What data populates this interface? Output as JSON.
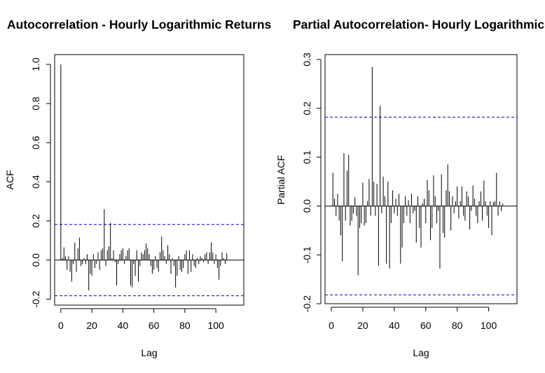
{
  "chart_data": [
    {
      "type": "bar",
      "title": "Autocorrelation - Hourly Logarithmic Returns",
      "xlabel": "Lag",
      "ylabel": "ACF",
      "xlim": [
        -4,
        118
      ],
      "ylim": [
        -0.23,
        1.05
      ],
      "x_ticks": [
        0,
        20,
        40,
        60,
        80,
        100
      ],
      "y_ticks": [
        -0.2,
        0.0,
        0.2,
        0.4,
        0.6,
        0.8,
        1.0
      ],
      "y_tick_labels": [
        "-0.2",
        "0.0",
        "0.2",
        "0.4",
        "0.6",
        "0.8",
        "1.0"
      ],
      "confidence_bound": 0.182,
      "zero_line": true,
      "line_color": "#000000",
      "bound_color": "#0000cc",
      "lags": [
        0,
        1,
        2,
        3,
        4,
        5,
        6,
        7,
        8,
        9,
        10,
        11,
        12,
        13,
        14,
        15,
        16,
        17,
        18,
        19,
        20,
        21,
        22,
        23,
        24,
        25,
        26,
        27,
        28,
        29,
        30,
        31,
        32,
        33,
        34,
        35,
        36,
        37,
        38,
        39,
        40,
        41,
        42,
        43,
        44,
        45,
        46,
        47,
        48,
        49,
        50,
        51,
        52,
        53,
        54,
        55,
        56,
        57,
        58,
        59,
        60,
        61,
        62,
        63,
        64,
        65,
        66,
        67,
        68,
        69,
        70,
        71,
        72,
        73,
        74,
        75,
        76,
        77,
        78,
        79,
        80,
        81,
        82,
        83,
        84,
        85,
        86,
        87,
        88,
        89,
        90,
        91,
        92,
        93,
        94,
        95,
        96,
        97,
        98,
        99,
        100,
        101,
        102,
        103,
        104,
        105,
        106,
        107,
        108
      ],
      "values": [
        1.0,
        0.01,
        0.065,
        0.02,
        -0.05,
        0.02,
        -0.06,
        -0.11,
        -0.02,
        0.09,
        -0.06,
        0.06,
        0.115,
        -0.03,
        -0.02,
        0.01,
        -0.02,
        0.03,
        -0.155,
        -0.07,
        -0.08,
        0.03,
        -0.04,
        -0.02,
        0.04,
        -0.05,
        0.05,
        0.06,
        0.26,
        -0.03,
        0.05,
        0.07,
        0.19,
        0.01,
        0.05,
        -0.01,
        -0.13,
        -0.02,
        0.03,
        0.05,
        0.06,
        -0.02,
        0.02,
        0.05,
        0.06,
        -0.13,
        -0.14,
        -0.02,
        -0.08,
        0.05,
        -0.11,
        -0.03,
        0.04,
        0.03,
        0.05,
        0.085,
        0.06,
        0.03,
        -0.03,
        -0.07,
        -0.05,
        0.02,
        -0.04,
        -0.06,
        0.04,
        0.12,
        0.05,
        0.02,
        -0.02,
        0.075,
        0.03,
        -0.07,
        0.01,
        -0.03,
        -0.14,
        -0.08,
        0.02,
        -0.05,
        -0.06,
        -0.04,
        0.03,
        0.05,
        -0.07,
        0.05,
        -0.06,
        0.03,
        -0.03,
        -0.04,
        0.01,
        -0.02,
        0.02,
        0.01,
        -0.01,
        0.03,
        0.04,
        -0.02,
        0.04,
        0.09,
        0.04,
        -0.02,
        0.03,
        -0.04,
        -0.1,
        -0.03,
        0.04,
        0.01,
        -0.02,
        0.035,
        0.0
      ]
    },
    {
      "type": "bar",
      "title": "Partial Autocorrelation- Hourly Logarithmic Returns",
      "xlabel": "Lag",
      "ylabel": "Partial ACF",
      "xlim": [
        -4,
        118
      ],
      "ylim": [
        -0.2,
        0.31
      ],
      "x_ticks": [
        0,
        20,
        40,
        60,
        80,
        100
      ],
      "y_ticks": [
        -0.2,
        -0.1,
        0.0,
        0.1,
        0.2,
        0.3
      ],
      "y_tick_labels": [
        "-0.2",
        "-0.1",
        "0.0",
        "0.1",
        "0.2",
        "0.3"
      ],
      "confidence_bound": 0.182,
      "zero_line": true,
      "line_color": "#000000",
      "bound_color": "#0000cc",
      "lags": [
        1,
        2,
        3,
        4,
        5,
        6,
        7,
        8,
        9,
        10,
        11,
        12,
        13,
        14,
        15,
        16,
        17,
        18,
        19,
        20,
        21,
        22,
        23,
        24,
        25,
        26,
        27,
        28,
        29,
        30,
        31,
        32,
        33,
        34,
        35,
        36,
        37,
        38,
        39,
        40,
        41,
        42,
        43,
        44,
        45,
        46,
        47,
        48,
        49,
        50,
        51,
        52,
        53,
        54,
        55,
        56,
        57,
        58,
        59,
        60,
        61,
        62,
        63,
        64,
        65,
        66,
        67,
        68,
        69,
        70,
        71,
        72,
        73,
        74,
        75,
        76,
        77,
        78,
        79,
        80,
        81,
        82,
        83,
        84,
        85,
        86,
        87,
        88,
        89,
        90,
        91,
        92,
        93,
        94,
        95,
        96,
        97,
        98,
        99,
        100,
        101,
        102,
        103,
        104,
        105,
        106,
        107,
        108,
        109,
        110,
        111,
        112,
        113
      ],
      "values": [
        0.068,
        0.015,
        -0.02,
        0.025,
        -0.03,
        -0.06,
        -0.113,
        0.108,
        -0.03,
        0.072,
        0.105,
        -0.04,
        -0.03,
        -0.015,
        0.018,
        -0.02,
        -0.142,
        -0.045,
        -0.035,
        0.048,
        -0.04,
        -0.035,
        0.01,
        0.055,
        -0.02,
        0.285,
        0.05,
        -0.02,
        0.045,
        -0.122,
        0.205,
        -0.015,
        0.06,
        0.02,
        -0.118,
        0.05,
        -0.128,
        -0.035,
        0.032,
        -0.015,
        0.015,
        -0.02,
        0.025,
        -0.118,
        -0.085,
        -0.035,
        0.02,
        -0.02,
        0.012,
        -0.035,
        0.025,
        -0.015,
        -0.01,
        -0.075,
        0.02,
        -0.045,
        -0.085,
        0.005,
        0.015,
        -0.035,
        0.053,
        0.032,
        -0.07,
        -0.045,
        0.063,
        0.02,
        -0.035,
        -0.01,
        -0.128,
        0.065,
        -0.055,
        -0.065,
        0.032,
        0.085,
        0.03,
        -0.05,
        0.02,
        -0.015,
        0.01,
        0.04,
        -0.025,
        0.01,
        0.04,
        -0.02,
        -0.03,
        0.03,
        0.02,
        -0.048,
        -0.01,
        0.042,
        0.015,
        -0.02,
        -0.035,
        0.01,
        0.03,
        -0.03,
        0.052,
        0.01,
        -0.02,
        -0.045,
        0.01,
        -0.06,
        0.008,
        0.01,
        0.068,
        -0.02,
        0.01,
        -0.01,
        0.005,
        0.0,
        0.0,
        0.0,
        0.0
      ]
    }
  ]
}
